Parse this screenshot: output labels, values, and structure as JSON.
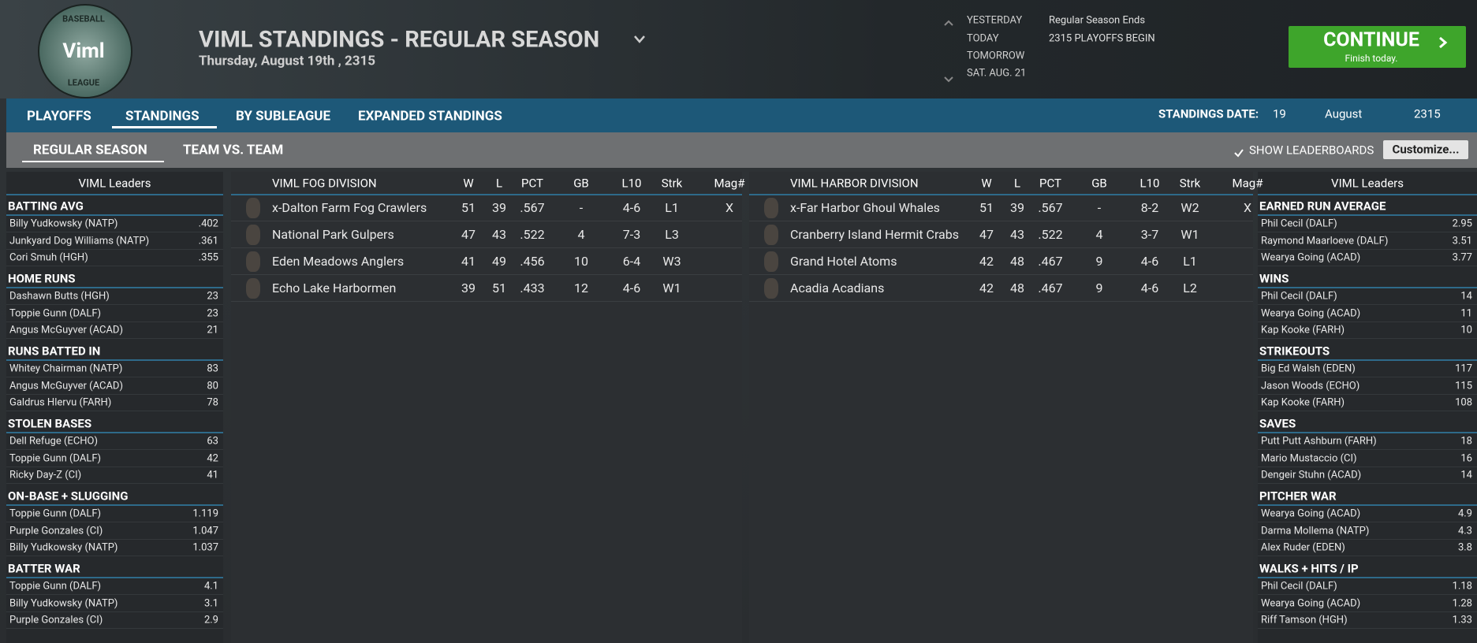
{
  "header": {
    "logo": {
      "top": "BASEBALL",
      "center": "Viml",
      "bottom": "LEAGUE"
    },
    "title": "VIML STANDINGS - REGULAR SEASON",
    "date": "Thursday, August 19th , 2315",
    "calendar_days": [
      "YESTERDAY",
      "TODAY",
      "TOMORROW",
      "SAT. AUG. 21"
    ],
    "calendar_events": [
      "Regular Season Ends",
      "2315 PLAYOFFS BEGIN"
    ],
    "continue": {
      "label": "CONTINUE",
      "sub": "Finish today."
    }
  },
  "nav": {
    "tabs": [
      "PLAYOFFS",
      "STANDINGS",
      "BY SUBLEAGUE",
      "EXPANDED STANDINGS"
    ],
    "standings_date": {
      "label": "STANDINGS DATE:",
      "day": "19",
      "month": "August",
      "year": "2315"
    }
  },
  "subnav": {
    "tabs": [
      "REGULAR SEASON",
      "TEAM VS. TEAM"
    ],
    "show_leaderboards": "SHOW LEADERBOARDS",
    "customize": "Customize..."
  },
  "leaders_left": {
    "title": "VIML Leaders",
    "sections": [
      {
        "title": "BATTING AVG",
        "rows": [
          [
            "Billy Yudkowsky (NATP)",
            ".402"
          ],
          [
            "Junkyard Dog Williams (NATP)",
            ".361"
          ],
          [
            "Cori Smuh (HGH)",
            ".355"
          ]
        ]
      },
      {
        "title": "HOME RUNS",
        "rows": [
          [
            "Dashawn Butts (HGH)",
            "23"
          ],
          [
            "Toppie Gunn (DALF)",
            "23"
          ],
          [
            "Angus McGuyver (ACAD)",
            "21"
          ]
        ]
      },
      {
        "title": "RUNS BATTED IN",
        "rows": [
          [
            "Whitey Chairman (NATP)",
            "83"
          ],
          [
            "Angus McGuyver (ACAD)",
            "80"
          ],
          [
            "Galdrus Hlervu (FARH)",
            "78"
          ]
        ]
      },
      {
        "title": "STOLEN BASES",
        "rows": [
          [
            "Dell Refuge (ECHO)",
            "63"
          ],
          [
            "Toppie Gunn (DALF)",
            "42"
          ],
          [
            "Ricky Day-Z (CI)",
            "41"
          ]
        ]
      },
      {
        "title": "ON-BASE + SLUGGING",
        "rows": [
          [
            "Toppie Gunn (DALF)",
            "1.119"
          ],
          [
            "Purple Gonzales (CI)",
            "1.047"
          ],
          [
            "Billy Yudkowsky (NATP)",
            "1.037"
          ]
        ]
      },
      {
        "title": "BATTER WAR",
        "rows": [
          [
            "Toppie Gunn (DALF)",
            "4.1"
          ],
          [
            "Billy Yudkowsky (NATP)",
            "3.1"
          ],
          [
            "Purple Gonzales (CI)",
            "2.9"
          ]
        ]
      }
    ]
  },
  "leaders_right": {
    "title": "VIML Leaders",
    "sections": [
      {
        "title": "EARNED RUN AVERAGE",
        "rows": [
          [
            "Phil Cecil (DALF)",
            "2.95"
          ],
          [
            "Raymond Maarloeve (DALF)",
            "3.51"
          ],
          [
            "Wearya Going (ACAD)",
            "3.77"
          ]
        ]
      },
      {
        "title": "WINS",
        "rows": [
          [
            "Phil Cecil (DALF)",
            "14"
          ],
          [
            "Wearya Going (ACAD)",
            "11"
          ],
          [
            "Kap Kooke (FARH)",
            "10"
          ]
        ]
      },
      {
        "title": "STRIKEOUTS",
        "rows": [
          [
            "Big Ed Walsh (EDEN)",
            "117"
          ],
          [
            "Jason Woods (ECHO)",
            "115"
          ],
          [
            "Kap Kooke (FARH)",
            "108"
          ]
        ]
      },
      {
        "title": "SAVES",
        "rows": [
          [
            "Putt Putt Ashburn (FARH)",
            "18"
          ],
          [
            "Mario Mustaccio (CI)",
            "16"
          ],
          [
            "Dengeir Stuhn (ACAD)",
            "14"
          ]
        ]
      },
      {
        "title": "PITCHER WAR",
        "rows": [
          [
            "Wearya Going (ACAD)",
            "4.9"
          ],
          [
            "Darma Mollema (NATP)",
            "4.3"
          ],
          [
            "Alex Ruder (EDEN)",
            "3.8"
          ]
        ]
      },
      {
        "title": "WALKS + HITS / IP",
        "rows": [
          [
            "Phil Cecil (DALF)",
            "1.18"
          ],
          [
            "Wearya Going (ACAD)",
            "1.28"
          ],
          [
            "Riff Tamson (HGH)",
            "1.33"
          ]
        ]
      }
    ]
  },
  "divisions": [
    {
      "columns": [
        "VIML FOG DIVISION",
        "W",
        "L",
        "PCT",
        "GB",
        "L10",
        "Strk",
        "Mag#"
      ],
      "rows": [
        [
          "x-Dalton Farm Fog Crawlers",
          "51",
          "39",
          ".567",
          "-",
          "4-6",
          "L1",
          "X"
        ],
        [
          "National Park Gulpers",
          "47",
          "43",
          ".522",
          "4",
          "7-3",
          "L3"
        ],
        [
          "Eden Meadows Anglers",
          "41",
          "49",
          ".456",
          "10",
          "6-4",
          "W3"
        ],
        [
          "Echo Lake Harbormen",
          "39",
          "51",
          ".433",
          "12",
          "4-6",
          "W1"
        ]
      ]
    },
    {
      "columns": [
        "VIML HARBOR DIVISION",
        "W",
        "L",
        "PCT",
        "GB",
        "L10",
        "Strk",
        "Mag#"
      ],
      "rows": [
        [
          "x-Far Harbor Ghoul Whales",
          "51",
          "39",
          ".567",
          "-",
          "8-2",
          "W2",
          "X"
        ],
        [
          "Cranberry Island Hermit Crabs",
          "47",
          "43",
          ".522",
          "4",
          "3-7",
          "W1"
        ],
        [
          "Grand Hotel Atoms",
          "42",
          "48",
          ".467",
          "9",
          "4-6",
          "L1"
        ],
        [
          "Acadia Acadians",
          "42",
          "48",
          ".467",
          "9",
          "4-6",
          "L2"
        ]
      ]
    }
  ]
}
